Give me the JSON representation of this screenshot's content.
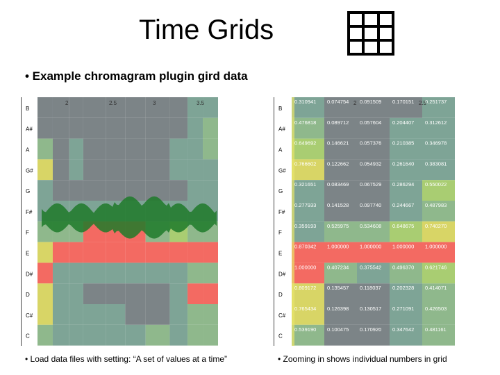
{
  "slide": {
    "title": "Time Grids",
    "bullet": "• Example chromagram plugin gird data",
    "caption_left": "• Load data files with setting: “A set of values at a time”",
    "caption_right": "• Zooming in shows individual numbers in grid"
  },
  "icons": {
    "title_icon": "grid-icon"
  },
  "chart_data": [
    {
      "type": "heatmap",
      "title": "",
      "x_tick_labels": [
        "2",
        "2.5",
        "3",
        "3.5"
      ],
      "y_labels": [
        "B",
        "A#",
        "A",
        "G#",
        "G",
        "F#",
        "F",
        "E",
        "D#",
        "D",
        "C#",
        "C"
      ]
    },
    {
      "type": "heatmap",
      "title": "",
      "x_tick_labels": [
        "2",
        "2.5"
      ],
      "y_labels": [
        "B",
        "A#",
        "A",
        "G#",
        "G",
        "F#",
        "F",
        "E",
        "D#",
        "D",
        "C#",
        "C"
      ],
      "columns": 5,
      "values": [
        [
          "0.310941",
          "0.074754",
          "0.091509",
          "0.170151",
          "0.251737"
        ],
        [
          "0.476818",
          "0.089712",
          "0.057604",
          "0.204407",
          "0.312612"
        ],
        [
          "0.649692",
          "0.146621",
          "0.057376",
          "0.210385",
          "0.346978"
        ],
        [
          "0.766602",
          "0.122662",
          "0.054932",
          "0.261640",
          "0.383081"
        ],
        [
          "0.321651",
          "0.083469",
          "0.067529",
          "0.286294",
          "0.550022"
        ],
        [
          "0.277933",
          "0.141528",
          "0.097740",
          "0.244667",
          "0.487983"
        ],
        [
          "0.359193",
          "0.525975",
          "0.534608",
          "0.648675",
          "0.740270"
        ],
        [
          "0.870342",
          "1.000000",
          "1.000000",
          "1.000000",
          "1.000000"
        ],
        [
          "1.000000",
          "0.407234",
          "0.375542",
          "0.496370",
          "0.621746"
        ],
        [
          "0.809172",
          "0.135457",
          "0.118037",
          "0.202328",
          "0.414071"
        ],
        [
          "0.765434",
          "0.126398",
          "0.130517",
          "0.271091",
          "0.426503"
        ],
        [
          "0.539190",
          "0.100475",
          "0.170920",
          "0.347642",
          "0.481161"
        ]
      ]
    }
  ]
}
